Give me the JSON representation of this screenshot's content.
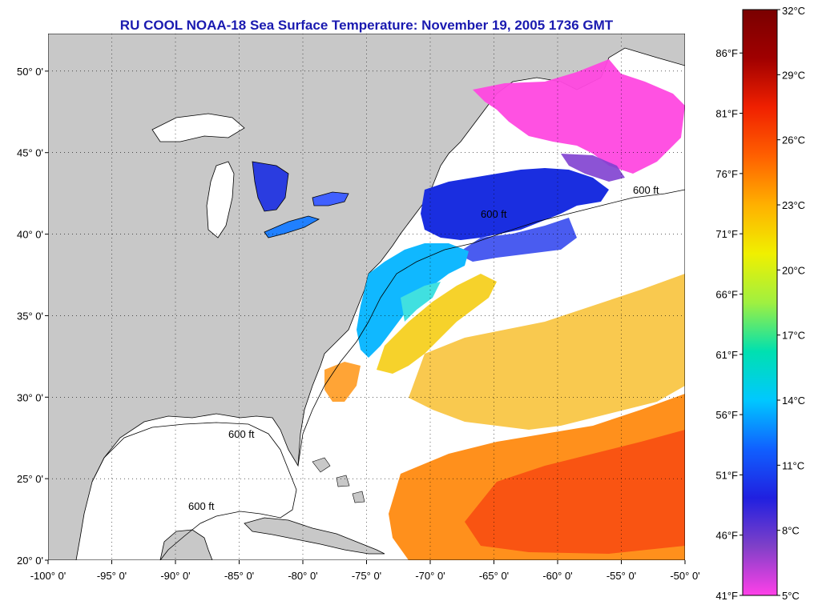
{
  "title": "RU COOL  NOAA-18  Sea Surface Temperature:  November 19, 2005 1736 GMT",
  "map": {
    "lat_labels": [
      "50° 0'",
      "45° 0'",
      "40° 0'",
      "35° 0'",
      "30° 0'",
      "25° 0'",
      "20° 0'"
    ],
    "lon_labels": [
      "-100° 0'",
      "-95° 0'",
      "-90° 0'",
      "-85° 0'",
      "-80° 0'",
      "-75° 0'",
      "-70° 0'",
      "-65° 0'",
      "-60° 0'",
      "-55° 0'",
      "-50° 0'"
    ],
    "lat_values": [
      50,
      45,
      40,
      35,
      30,
      25,
      20
    ],
    "lon_values": [
      -100,
      -95,
      -90,
      -85,
      -80,
      -75,
      -70,
      -65,
      -60,
      -55,
      -50
    ],
    "extent": {
      "lon_min": -100,
      "lon_max": -50,
      "lat_min": 20,
      "lat_max": 52.3
    },
    "contour_label": "600 ft",
    "land_color": "#c8c8c8",
    "no_data_color": "#ffffff"
  },
  "colorbar": {
    "fahrenheit_labels": [
      "86°F",
      "81°F",
      "76°F",
      "71°F",
      "66°F",
      "61°F",
      "56°F",
      "51°F",
      "46°F",
      "41°F"
    ],
    "fahrenheit_values": [
      86,
      81,
      76,
      71,
      66,
      61,
      56,
      51,
      46,
      41
    ],
    "celsius_labels": [
      "32°C",
      "29°C",
      "26°C",
      "23°C",
      "20°C",
      "17°C",
      "14°C",
      "11°C",
      "8°C",
      "5°C"
    ],
    "celsius_values": [
      32,
      29,
      26,
      23,
      20,
      17,
      14,
      11,
      8,
      5
    ],
    "range_c": [
      5,
      32
    ],
    "stops": [
      "#ff40e8",
      "#8040c8",
      "#2020e0",
      "#1060ff",
      "#00c8ff",
      "#00e0b0",
      "#a0f040",
      "#f0f000",
      "#ffb000",
      "#ff6000",
      "#f02000",
      "#a00000",
      "#7a0000"
    ]
  }
}
